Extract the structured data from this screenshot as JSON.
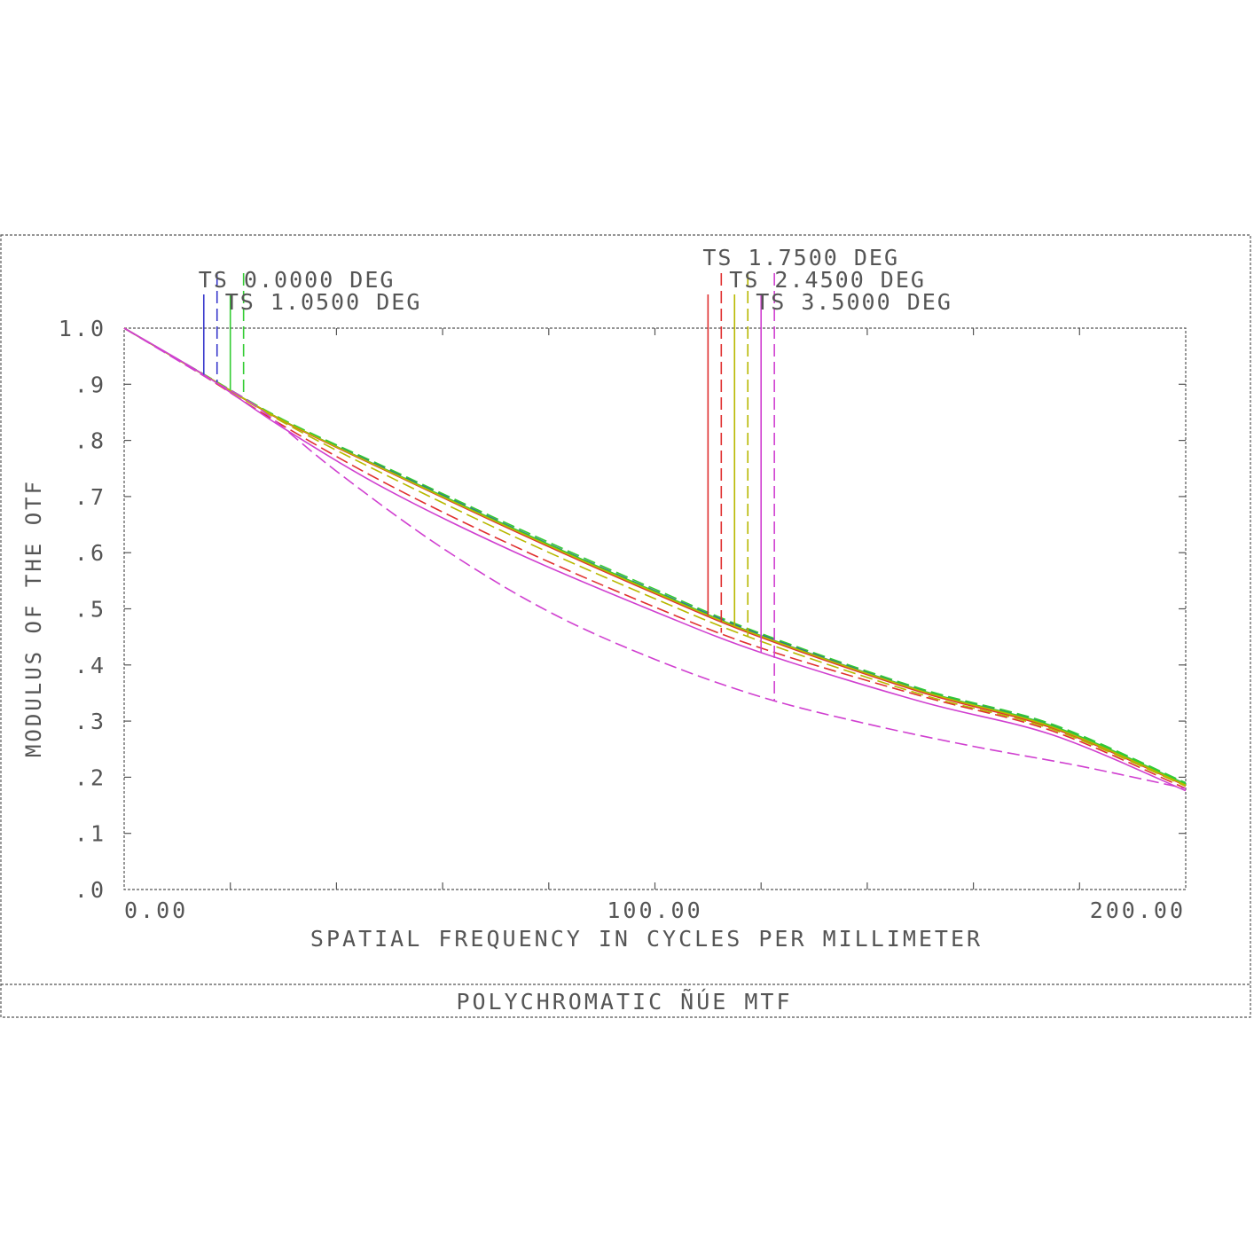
{
  "chart_data": {
    "type": "line",
    "title": "POLYCHROMATIC ÑÚE  MTF",
    "xlabel": "SPATIAL FREQUENCY IN CYCLES PER MILLIMETER",
    "ylabel": "MODULUS OF THE OTF",
    "xlim": [
      0,
      200
    ],
    "ylim": [
      0,
      1
    ],
    "x_tick_labels": [
      {
        "value": 0,
        "label": "0.00"
      },
      {
        "value": 100,
        "label": "100.00"
      },
      {
        "value": 200,
        "label": "200.00"
      }
    ],
    "x_minor_ticks": [
      20,
      40,
      60,
      80,
      100,
      120,
      140,
      160,
      180
    ],
    "y_tick_labels": [
      {
        "value": 1.0,
        "label": "1.0"
      },
      {
        "value": 0.9,
        "label": ".9"
      },
      {
        "value": 0.8,
        "label": ".8"
      },
      {
        "value": 0.7,
        "label": ".7"
      },
      {
        "value": 0.6,
        "label": ".6"
      },
      {
        "value": 0.5,
        "label": ".5"
      },
      {
        "value": 0.4,
        "label": ".4"
      },
      {
        "value": 0.3,
        "label": ".3"
      },
      {
        "value": 0.2,
        "label": ".2"
      },
      {
        "value": 0.1,
        "label": ".1"
      },
      {
        "value": 0.0,
        "label": ".0"
      }
    ],
    "grid": false,
    "legend_placement": "top",
    "colors": {
      "frame": "#555555",
      "blue": "#3a3acc",
      "green": "#33cc33",
      "red": "#e03030",
      "yellow": "#b8b800",
      "magenta": "#d040d0"
    },
    "legend": [
      {
        "label": "TS 0.0000 DEG",
        "tangential_color": "#3a3acc",
        "sagittal_color": "#3a3acc",
        "tangential_x": 15,
        "sagittal_x": 17.5,
        "label_x": 14,
        "label_row": 1
      },
      {
        "label": "TS 1.0500 DEG",
        "tangential_color": "#33cc33",
        "sagittal_color": "#33cc33",
        "tangential_x": 20,
        "sagittal_x": 22.5,
        "label_x": 19,
        "label_row": 2
      },
      {
        "label": "TS 1.7500 DEG",
        "tangential_color": "#e03030",
        "sagittal_color": "#e03030",
        "tangential_x": 110,
        "sagittal_x": 112.5,
        "label_x": 109,
        "label_row": 0
      },
      {
        "label": "TS 2.4500 DEG",
        "tangential_color": "#b8b800",
        "sagittal_color": "#b8b800",
        "tangential_x": 115,
        "sagittal_x": 117.5,
        "label_x": 114,
        "label_row": 1
      },
      {
        "label": "TS 3.5000 DEG",
        "tangential_color": "#d040d0",
        "sagittal_color": "#d040d0",
        "tangential_x": 120,
        "sagittal_x": 122.5,
        "label_x": 119,
        "label_row": 2
      }
    ],
    "series": [
      {
        "field": "0.0000 DEG",
        "orientation": "T",
        "color": "#3a3acc",
        "dashed": false,
        "x": [
          0,
          15,
          30,
          50,
          75,
          100,
          120,
          150,
          175,
          200
        ],
        "y": [
          1.0,
          0.917,
          0.835,
          0.745,
          0.635,
          0.53,
          0.452,
          0.355,
          0.29,
          0.188
        ]
      },
      {
        "field": "0.0000 DEG",
        "orientation": "S",
        "color": "#3a3acc",
        "dashed": true,
        "x": [
          0,
          15,
          30,
          50,
          75,
          100,
          120,
          150,
          175,
          200
        ],
        "y": [
          1.0,
          0.917,
          0.836,
          0.747,
          0.637,
          0.532,
          0.454,
          0.357,
          0.292,
          0.19
        ]
      },
      {
        "field": "1.0500 DEG",
        "orientation": "T",
        "color": "#33cc33",
        "dashed": false,
        "x": [
          0,
          15,
          30,
          50,
          75,
          100,
          120,
          150,
          175,
          200
        ],
        "y": [
          1.0,
          0.917,
          0.835,
          0.745,
          0.636,
          0.531,
          0.452,
          0.355,
          0.291,
          0.188
        ]
      },
      {
        "field": "1.0500 DEG",
        "orientation": "S",
        "color": "#33cc33",
        "dashed": true,
        "x": [
          0,
          15,
          30,
          50,
          75,
          100,
          120,
          150,
          175,
          200
        ],
        "y": [
          1.0,
          0.918,
          0.837,
          0.749,
          0.64,
          0.535,
          0.456,
          0.358,
          0.294,
          0.19
        ]
      },
      {
        "field": "1.7500 DEG",
        "orientation": "T",
        "color": "#e03030",
        "dashed": false,
        "x": [
          0,
          15,
          30,
          50,
          75,
          100,
          120,
          150,
          175,
          200
        ],
        "y": [
          1.0,
          0.917,
          0.834,
          0.743,
          0.632,
          0.527,
          0.449,
          0.352,
          0.287,
          0.185
        ]
      },
      {
        "field": "1.7500 DEG",
        "orientation": "S",
        "color": "#e03030",
        "dashed": true,
        "x": [
          0,
          15,
          30,
          50,
          75,
          100,
          120,
          150,
          175,
          200
        ],
        "y": [
          1.0,
          0.915,
          0.826,
          0.72,
          0.605,
          0.503,
          0.43,
          0.345,
          0.282,
          0.18
        ]
      },
      {
        "field": "2.4500 DEG",
        "orientation": "T",
        "color": "#b8b800",
        "dashed": false,
        "x": [
          0,
          15,
          30,
          50,
          75,
          100,
          120,
          150,
          175,
          200
        ],
        "y": [
          1.0,
          0.917,
          0.835,
          0.744,
          0.634,
          0.529,
          0.451,
          0.354,
          0.289,
          0.186
        ]
      },
      {
        "field": "2.4500 DEG",
        "orientation": "S",
        "color": "#b8b800",
        "dashed": true,
        "x": [
          0,
          15,
          30,
          50,
          75,
          100,
          120,
          150,
          175,
          200
        ],
        "y": [
          1.0,
          0.917,
          0.832,
          0.735,
          0.622,
          0.518,
          0.442,
          0.348,
          0.285,
          0.184
        ]
      },
      {
        "field": "3.5000 DEG",
        "orientation": "T",
        "color": "#d040d0",
        "dashed": false,
        "x": [
          0,
          15,
          30,
          50,
          75,
          100,
          120,
          150,
          175,
          200
        ],
        "y": [
          1.0,
          0.917,
          0.822,
          0.71,
          0.595,
          0.495,
          0.422,
          0.335,
          0.275,
          0.176
        ]
      },
      {
        "field": "3.5000 DEG",
        "orientation": "S",
        "color": "#d040d0",
        "dashed": true,
        "x": [
          0,
          15,
          25,
          40,
          60,
          80,
          100,
          120,
          140,
          160,
          180,
          200
        ],
        "y": [
          1.0,
          0.915,
          0.86,
          0.745,
          0.608,
          0.495,
          0.41,
          0.343,
          0.295,
          0.255,
          0.22,
          0.18
        ]
      }
    ]
  }
}
